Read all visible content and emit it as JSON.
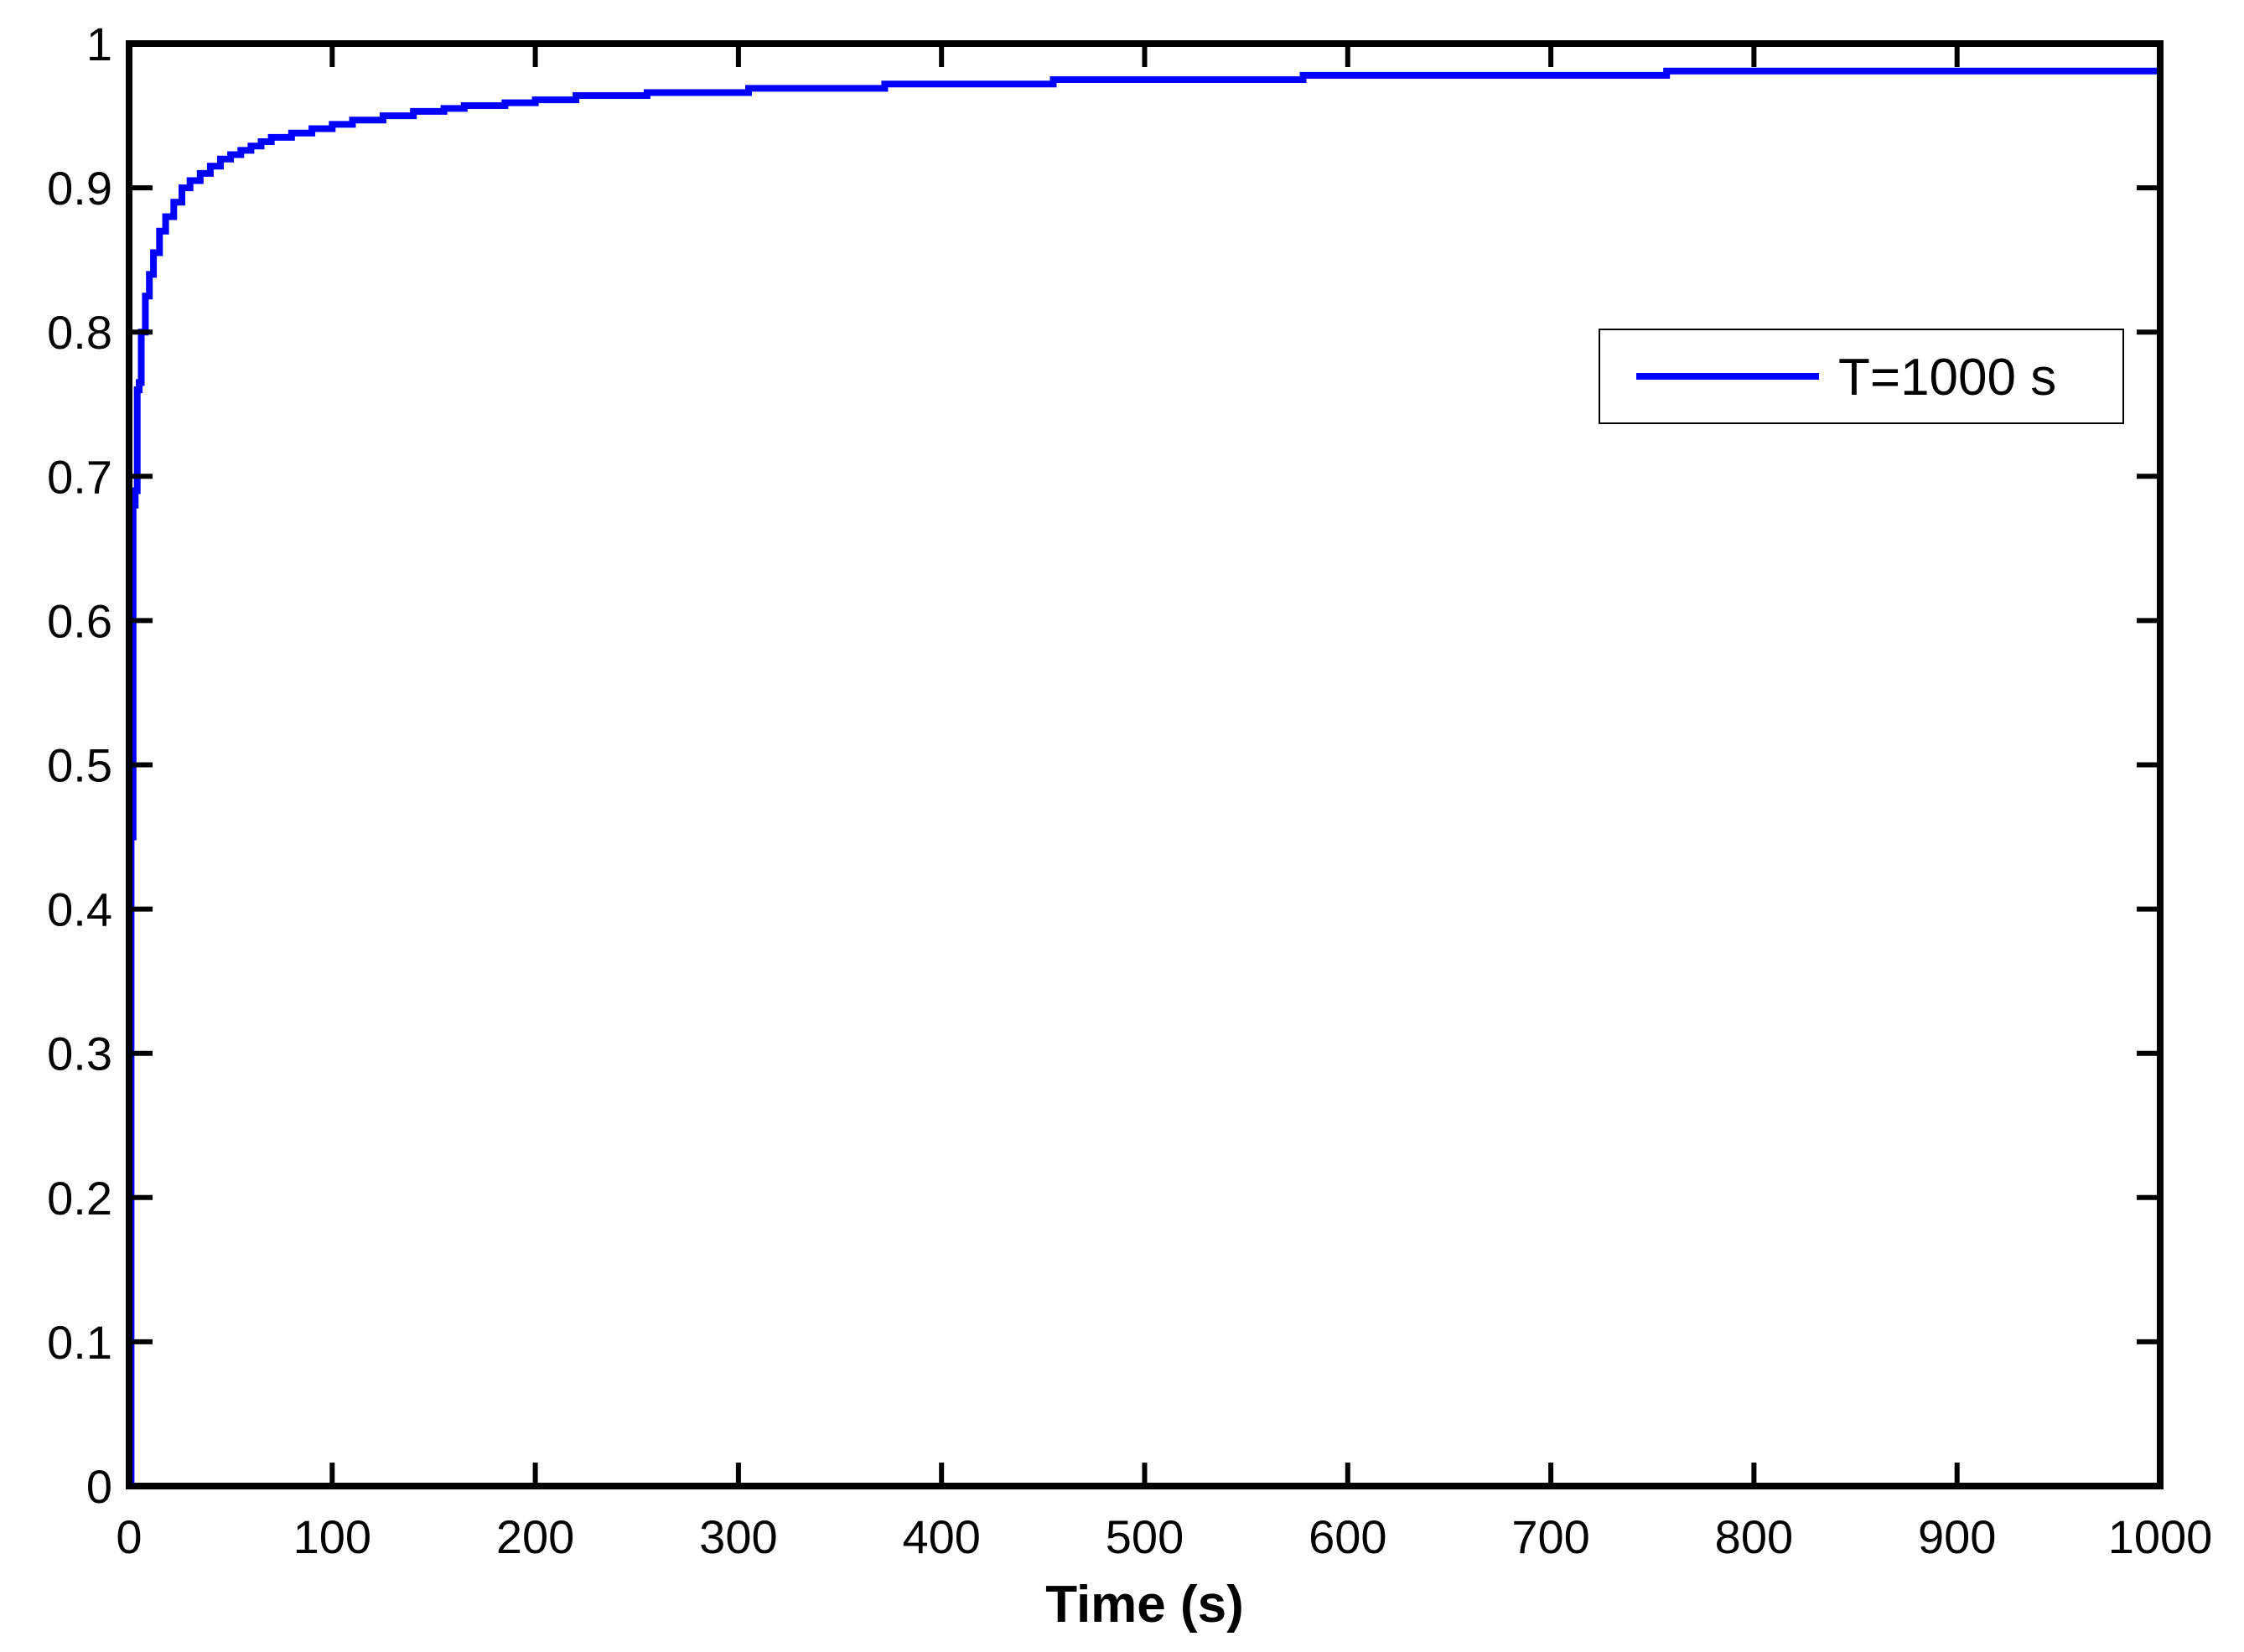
{
  "chart_data": {
    "type": "line",
    "title": "",
    "xlabel": "Time (s)",
    "ylabel": "",
    "xlim": [
      0,
      1000
    ],
    "ylim": [
      0,
      1
    ],
    "xticks": [
      0,
      100,
      200,
      300,
      400,
      500,
      600,
      700,
      800,
      900,
      1000
    ],
    "xtick_labels": [
      "0",
      "100",
      "200",
      "300",
      "400",
      "500",
      "600",
      "700",
      "800",
      "900",
      "1000"
    ],
    "yticks": [
      0,
      0.1,
      0.2,
      0.3,
      0.4,
      0.5,
      0.6,
      0.7,
      0.8,
      0.9,
      1
    ],
    "ytick_labels": [
      "0",
      "0.1",
      "0.2",
      "0.3",
      "0.4",
      "0.5",
      "0.6",
      "0.7",
      "0.8",
      "0.9",
      "1"
    ],
    "grid": false,
    "legend_position": "top-right",
    "series": [
      {
        "name": "T=1000 s",
        "color": "#0000ff",
        "style": "step",
        "x": [
          0,
          1,
          2,
          3,
          4,
          5,
          6,
          8,
          10,
          12,
          15,
          18,
          22,
          26,
          30,
          35,
          40,
          45,
          50,
          55,
          60,
          65,
          70,
          80,
          90,
          100,
          110,
          125,
          140,
          155,
          165,
          185,
          200,
          220,
          255,
          305,
          372,
          455,
          578,
          757,
          1000
        ],
        "y": [
          0,
          0.45,
          0.68,
          0.69,
          0.76,
          0.765,
          0.8,
          0.825,
          0.84,
          0.855,
          0.87,
          0.88,
          0.89,
          0.9,
          0.905,
          0.91,
          0.915,
          0.92,
          0.923,
          0.926,
          0.929,
          0.932,
          0.935,
          0.938,
          0.941,
          0.944,
          0.947,
          0.95,
          0.953,
          0.955,
          0.957,
          0.959,
          0.961,
          0.964,
          0.966,
          0.969,
          0.972,
          0.975,
          0.978,
          0.981,
          0.981
        ]
      }
    ]
  }
}
